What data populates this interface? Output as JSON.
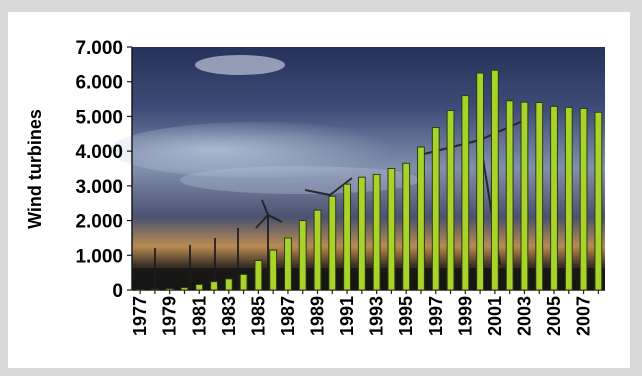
{
  "chart_data": {
    "type": "bar",
    "ylabel": "Wind turbines",
    "ylim": [
      0,
      7000
    ],
    "y_ticks": [
      0,
      1000,
      2000,
      3000,
      4000,
      5000,
      6000,
      7000
    ],
    "y_tick_labels": [
      "0",
      "1.000",
      "2.000",
      "3.000",
      "4.000",
      "5.000",
      "6.000",
      "7.000"
    ],
    "categories": [
      "1977",
      "1978",
      "1979",
      "1980",
      "1981",
      "1982",
      "1983",
      "1984",
      "1985",
      "1986",
      "1987",
      "1988",
      "1989",
      "1990",
      "1991",
      "1992",
      "1993",
      "1994",
      "1995",
      "1996",
      "1997",
      "1998",
      "1999",
      "2000",
      "2001",
      "2002",
      "2003",
      "2004",
      "2005",
      "2006",
      "2007",
      "2008"
    ],
    "x_tick_labels": [
      "1977",
      "1979",
      "1981",
      "1983",
      "1985",
      "1987",
      "1989",
      "1991",
      "1993",
      "1995",
      "1997",
      "1999",
      "2001",
      "2003",
      "2005",
      "2007"
    ],
    "values": [
      10,
      20,
      40,
      70,
      160,
      240,
      320,
      450,
      850,
      1150,
      1500,
      2000,
      2300,
      2700,
      3050,
      3250,
      3330,
      3500,
      3650,
      4120,
      4680,
      5170,
      5600,
      6250,
      6330,
      5450,
      5410,
      5400,
      5290,
      5260,
      5230,
      5120
    ],
    "colors": {
      "bar_fill": "#a8d42a",
      "bar_stroke": "#2f3a12",
      "background": "#d9d9d9",
      "panel": "#ffffff",
      "sky_top": "#2c3a63",
      "sky_mid": "#7f8eab",
      "horizon": "#c8a060",
      "ground": "#1a1a1a"
    }
  }
}
